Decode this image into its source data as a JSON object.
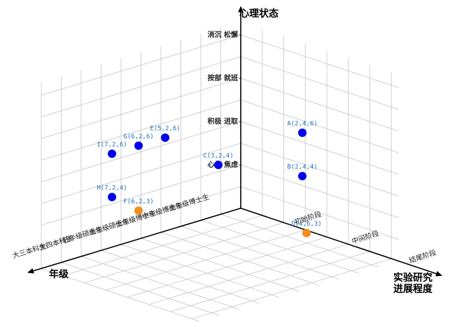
{
  "chart_data": {
    "type": "scatter3d",
    "x_axis": {
      "title": "年级",
      "ticks": [
        {
          "value": 1,
          "label": "高年级博士生"
        },
        {
          "value": 2,
          "label": "中年级博士生"
        },
        {
          "value": 3,
          "label": "低年级博士生"
        },
        {
          "value": 4,
          "label": "高年级硕士生"
        },
        {
          "value": 5,
          "label": "低年级硕士生"
        },
        {
          "value": 6,
          "label": "大四本科生"
        },
        {
          "value": 7,
          "label": "大三本科生"
        }
      ]
    },
    "y_axis": {
      "title": [
        "实验研究",
        "进展程度"
      ],
      "ticks": [
        {
          "value": 2,
          "label": "初始阶段"
        },
        {
          "value": 4,
          "label": "中间阶段"
        },
        {
          "value": 6,
          "label": "结尾阶段"
        }
      ]
    },
    "z_axis": {
      "title": "心理状态",
      "ticks": [
        {
          "value": 2,
          "label": "心急 焦虑"
        },
        {
          "value": 4,
          "label": "积极 进取"
        },
        {
          "value": 6,
          "label": "按部 就班"
        },
        {
          "value": 8,
          "label": "消沉 松懈"
        }
      ]
    },
    "points": [
      {
        "label": "A(2,4,6)",
        "x": 2,
        "y": 4,
        "z": 6,
        "color": "#0000ee"
      },
      {
        "label": "B(2,4,4)",
        "x": 2,
        "y": 4,
        "z": 4,
        "color": "#0000ee"
      },
      {
        "label": "C(3,2,4)",
        "x": 3,
        "y": 2,
        "z": 4,
        "color": "#0000ee"
      },
      {
        "label": "D(4,6,3)",
        "x": 4,
        "y": 6,
        "z": 3,
        "color": "#f28c1e"
      },
      {
        "label": "E(5,2,6)",
        "x": 5,
        "y": 2,
        "z": 6,
        "color": "#0000ee"
      },
      {
        "label": "F(6,2,3)",
        "x": 6,
        "y": 2,
        "z": 3,
        "color": "#f28c1e"
      },
      {
        "label": "G(6,2,6)",
        "x": 6,
        "y": 2,
        "z": 6,
        "color": "#0000ee"
      },
      {
        "label": "H(7,2,4)",
        "x": 7,
        "y": 2,
        "z": 4,
        "color": "#0000ee"
      },
      {
        "label": "I(7,2,6)",
        "x": 7,
        "y": 2,
        "z": 6,
        "color": "#0000ee"
      }
    ]
  }
}
